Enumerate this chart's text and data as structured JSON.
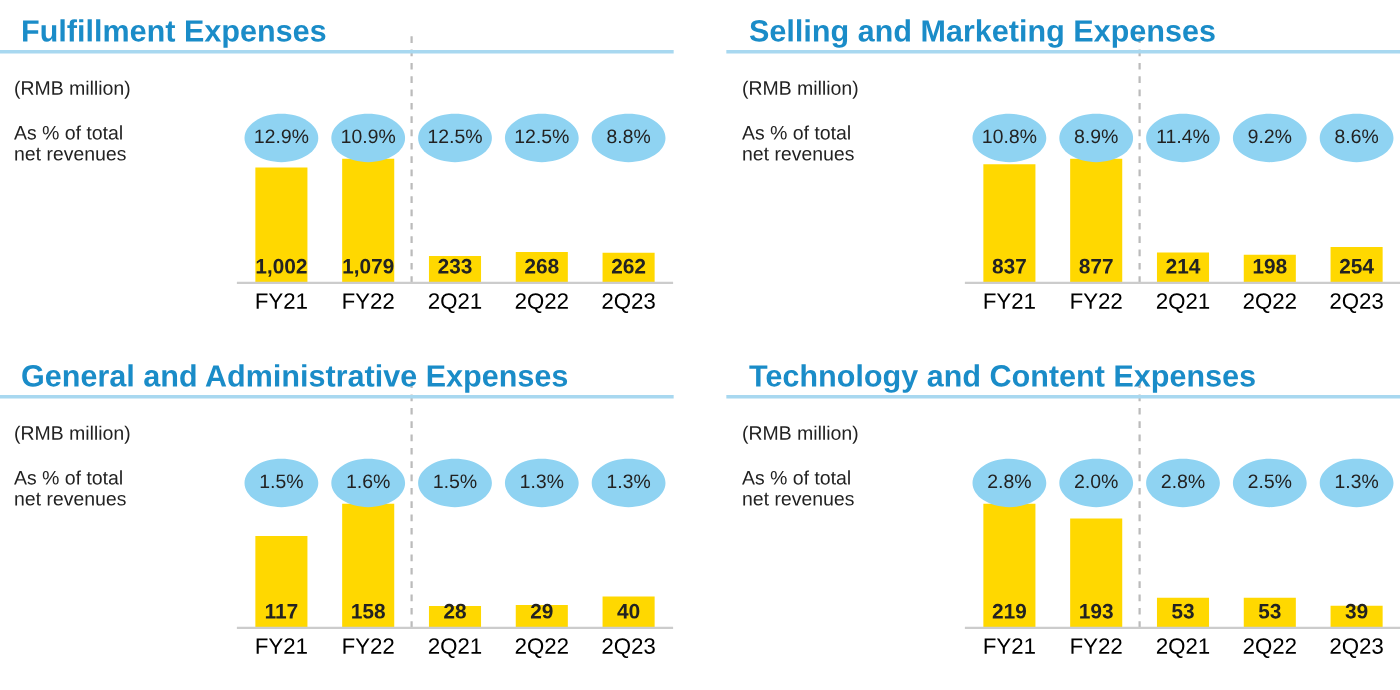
{
  "chart_data": [
    {
      "type": "bar",
      "title": "Fulfillment Expenses",
      "categories": [
        "FY21",
        "FY22",
        "2Q21",
        "2Q22",
        "2Q23"
      ],
      "values": [
        1002,
        1079,
        233,
        268,
        262
      ],
      "color": "#ffd800",
      "data_labels": true,
      "value_labels": [
        "1,002",
        "1,079",
        "233",
        "268",
        "262"
      ],
      "annotations": [
        "(RMB million)",
        "As % of total\nnet revenues",
        {
          "text": "12.9%",
          "x": "FY21"
        },
        {
          "text": "10.9%",
          "x": "FY22"
        },
        {
          "text": "12.5%",
          "x": "2Q21"
        },
        {
          "text": "12.5%",
          "x": "2Q22"
        },
        {
          "text": "8.8%",
          "x": "2Q23"
        }
      ]
    },
    {
      "type": "bar",
      "title": "Selling and Marketing Expenses",
      "categories": [
        "FY21",
        "FY22",
        "2Q21",
        "2Q22",
        "2Q23"
      ],
      "values": [
        837,
        877,
        214,
        198,
        254
      ],
      "color": "#ffd800",
      "data_labels": true,
      "annotations": [
        "(RMB million)",
        "As % of total\nnet revenues",
        {
          "text": "10.8%",
          "x": "FY21"
        },
        {
          "text": "8.9%",
          "x": "FY22"
        },
        {
          "text": "11.4%",
          "x": "2Q21"
        },
        {
          "text": "9.2%",
          "x": "2Q22"
        },
        {
          "text": "8.6%",
          "x": "2Q23"
        }
      ]
    },
    {
      "type": "bar",
      "title": "General and Administrative Expenses",
      "categories": [
        "FY21",
        "FY22",
        "2Q21",
        "2Q22",
        "2Q23"
      ],
      "values": [
        117,
        158,
        28,
        29,
        40
      ],
      "color": "#ffd800",
      "data_labels": true,
      "annotations": [
        "(RMB million)",
        "As % of total\nnet revenues",
        {
          "text": "1.5%",
          "x": "FY21"
        },
        {
          "text": "1.6%",
          "x": "FY22"
        },
        {
          "text": "1.5%",
          "x": "2Q21"
        },
        {
          "text": "1.3%",
          "x": "2Q22"
        },
        {
          "text": "1.3%",
          "x": "2Q23"
        }
      ]
    },
    {
      "type": "bar",
      "title": "Technology and Content Expenses",
      "categories": [
        "FY21",
        "FY22",
        "2Q21",
        "2Q22",
        "2Q23"
      ],
      "values": [
        219,
        193,
        53,
        53,
        39
      ],
      "color": "#ffd800",
      "data_labels": true,
      "annotations": [
        "(RMB million)",
        "As % of total\nnet revenues",
        {
          "text": "2.8%",
          "x": "FY21"
        },
        {
          "text": "2.0%",
          "x": "FY22"
        },
        {
          "text": "2.8%",
          "x": "2Q21"
        },
        {
          "text": "2.5%",
          "x": "2Q22"
        },
        {
          "text": "1.3%",
          "x": "2Q23"
        }
      ]
    }
  ]
}
